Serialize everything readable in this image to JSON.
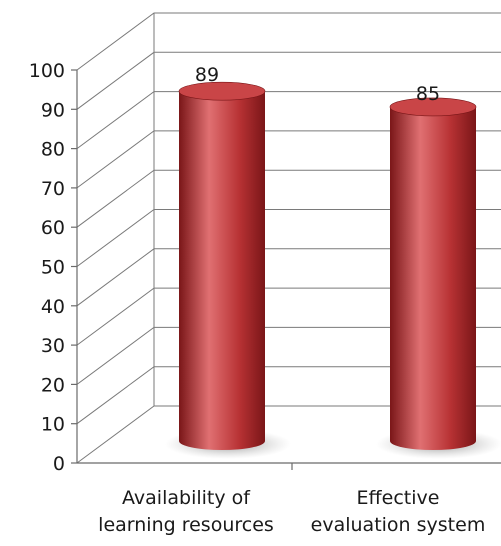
{
  "chart_data": {
    "type": "bar",
    "style": "3d-cylinder",
    "categories": [
      [
        "Availability of",
        "learning resources"
      ],
      [
        "Effective",
        "evaluation system"
      ]
    ],
    "values": [
      89,
      85
    ],
    "data_labels": [
      "89",
      "85"
    ],
    "ylim": [
      0,
      100
    ],
    "yticks": [
      "0",
      "10",
      "20",
      "30",
      "40",
      "50",
      "60",
      "70",
      "80",
      "90",
      "100"
    ],
    "grid": true,
    "legend": "none",
    "title": "",
    "xlabel": "",
    "ylabel": "",
    "colors": {
      "bar": "#b83234",
      "bar_dark": "#7a1618",
      "bar_light": "#e07072",
      "bar_top": "#c94547",
      "shadow": "#9a9a9a"
    }
  }
}
